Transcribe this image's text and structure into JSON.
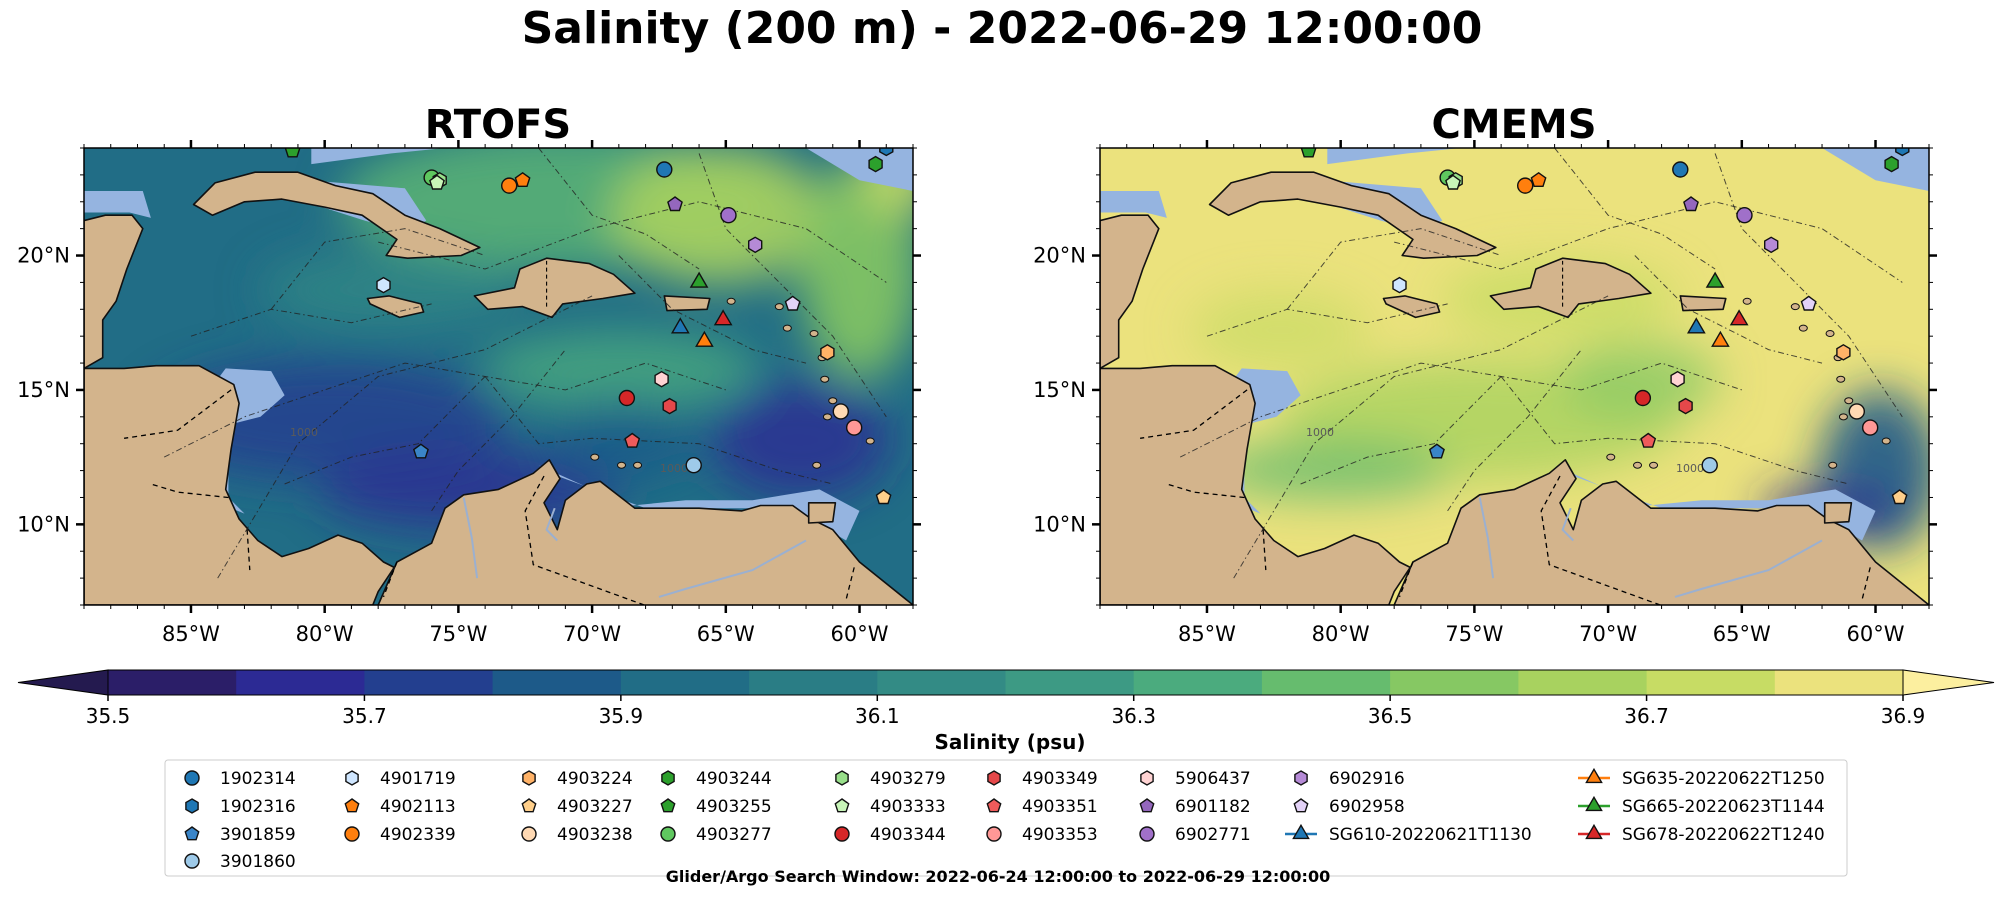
{
  "chart_data": {
    "type": "map",
    "title": "Salinity (200 m) - 2022-06-29 12:00:00",
    "panels": [
      {
        "name": "RTOFS",
        "background_level": 35.95
      },
      {
        "name": "CMEMS",
        "background_level": 36.85
      }
    ],
    "lon_range": [
      -89,
      -58
    ],
    "lat_range": [
      7,
      24
    ],
    "lon_ticks": [
      {
        "value": -85,
        "label": "85°W"
      },
      {
        "value": -80,
        "label": "80°W"
      },
      {
        "value": -75,
        "label": "75°W"
      },
      {
        "value": -70,
        "label": "70°W"
      },
      {
        "value": -65,
        "label": "65°W"
      },
      {
        "value": -60,
        "label": "60°W"
      }
    ],
    "lat_ticks": [
      {
        "value": 10,
        "label": "10°N"
      },
      {
        "value": 15,
        "label": "15°N"
      },
      {
        "value": 20,
        "label": "20°N"
      }
    ],
    "contour_labels": [
      "1000",
      "1000",
      "1000",
      "1000"
    ],
    "colorbar": {
      "label": "Salinity (psu)",
      "min": 35.5,
      "max": 36.9,
      "step": 0.1,
      "ticks": [
        "35.5",
        "35.7",
        "35.9",
        "36.1",
        "36.3",
        "36.5",
        "36.7",
        "36.9"
      ],
      "colors": [
        "#2b1e68",
        "#2c2a94",
        "#233f8f",
        "#1d5a89",
        "#216d86",
        "#2a7d85",
        "#338b85",
        "#3d9a84",
        "#4bab7e",
        "#66bc6e",
        "#86c863",
        "#a8d25f",
        "#c7dc64",
        "#ebe27d"
      ],
      "extend_low": "#241a4f",
      "extend_high": "#fcef9f"
    },
    "colors": {
      "land": "#d3b48c",
      "shallow": "#95b4e0",
      "deep_blue": "#2c1f6e"
    },
    "floats": [
      {
        "id": "1902314",
        "type": "argo",
        "marker": "circle",
        "color": "#1f77b4",
        "lon": -67.3,
        "lat": 23.2
      },
      {
        "id": "1902316",
        "type": "argo",
        "marker": "hexagon",
        "color": "#1f77b4",
        "lon": -59.0,
        "lat": 24.0
      },
      {
        "id": "3901859",
        "type": "argo",
        "marker": "pentagon",
        "color": "#3a85c8",
        "lon": -76.4,
        "lat": 12.7
      },
      {
        "id": "3901860",
        "type": "argo",
        "marker": "circle",
        "color": "#9ecae9",
        "lon": -66.2,
        "lat": 12.2
      },
      {
        "id": "4901719",
        "type": "argo",
        "marker": "hexagon",
        "color": "#cfe6ff",
        "lon": -77.8,
        "lat": 18.9
      },
      {
        "id": "4902113",
        "type": "argo",
        "marker": "pentagon",
        "color": "#ff7f0e",
        "lon": -72.6,
        "lat": 22.8
      },
      {
        "id": "4902339",
        "type": "argo",
        "marker": "circle",
        "color": "#ff7f0e",
        "lon": -73.1,
        "lat": 22.6
      },
      {
        "id": "4903224",
        "type": "argo",
        "marker": "hexagon",
        "color": "#ffb267",
        "lon": -61.2,
        "lat": 16.4
      },
      {
        "id": "4903227",
        "type": "argo",
        "marker": "pentagon",
        "color": "#ffcf8a",
        "lon": -59.1,
        "lat": 11.0
      },
      {
        "id": "4903238",
        "type": "argo",
        "marker": "circle",
        "color": "#ffd9b3",
        "lon": -60.7,
        "lat": 14.2
      },
      {
        "id": "4903244",
        "type": "argo",
        "marker": "hexagon",
        "color": "#2ca02c",
        "lon": -59.4,
        "lat": 23.4
      },
      {
        "id": "4903255",
        "type": "argo",
        "marker": "pentagon",
        "color": "#2ca02c",
        "lon": -81.2,
        "lat": 23.9
      },
      {
        "id": "4903277",
        "type": "argo",
        "marker": "circle",
        "color": "#5fc75f",
        "lon": -76.0,
        "lat": 22.9
      },
      {
        "id": "4903279",
        "type": "argo",
        "marker": "hexagon",
        "color": "#98df8a",
        "lon": -75.7,
        "lat": 22.8
      },
      {
        "id": "4903333",
        "type": "argo",
        "marker": "pentagon",
        "color": "#c8f5b8",
        "lon": -75.8,
        "lat": 22.7
      },
      {
        "id": "4903344",
        "type": "argo",
        "marker": "circle",
        "color": "#d62728",
        "lon": -68.7,
        "lat": 14.7
      },
      {
        "id": "4903349",
        "type": "argo",
        "marker": "hexagon",
        "color": "#e5484a",
        "lon": -67.1,
        "lat": 14.4
      },
      {
        "id": "4903351",
        "type": "argo",
        "marker": "pentagon",
        "color": "#ef5b5b",
        "lon": -68.5,
        "lat": 13.1
      },
      {
        "id": "4903353",
        "type": "argo",
        "marker": "circle",
        "color": "#ff9896",
        "lon": -60.2,
        "lat": 13.6
      },
      {
        "id": "5906437",
        "type": "argo",
        "marker": "hexagon",
        "color": "#ffd3d3",
        "lon": -67.4,
        "lat": 15.4
      },
      {
        "id": "6901182",
        "type": "argo",
        "marker": "pentagon",
        "color": "#9467bd",
        "lon": -66.9,
        "lat": 21.9
      },
      {
        "id": "6902771",
        "type": "argo",
        "marker": "circle",
        "color": "#a070c9",
        "lon": -64.9,
        "lat": 21.5
      },
      {
        "id": "6902916",
        "type": "argo",
        "marker": "hexagon",
        "color": "#b58ad6",
        "lon": -63.9,
        "lat": 20.4
      },
      {
        "id": "6902958",
        "type": "argo",
        "marker": "pentagon",
        "color": "#e3d2f7",
        "lon": -62.5,
        "lat": 18.2
      },
      {
        "id": "SG610-20220621T1130",
        "type": "glider",
        "marker": "triangle",
        "color": "#1f77b4",
        "lon": -66.7,
        "lat": 17.3
      },
      {
        "id": "SG635-20220622T1250",
        "type": "glider",
        "marker": "triangle",
        "color": "#ff7f0e",
        "lon": -65.8,
        "lat": 16.8
      },
      {
        "id": "SG665-20220623T1144",
        "type": "glider",
        "marker": "triangle",
        "color": "#2ca02c",
        "lon": -66.0,
        "lat": 19.0
      },
      {
        "id": "SG678-20220622T1240",
        "type": "glider",
        "marker": "triangle",
        "color": "#d62728",
        "lon": -65.1,
        "lat": 17.6
      }
    ],
    "footer": "Glider/Argo Search Window: 2022-06-24 12:00:00 to 2022-06-29 12:00:00"
  }
}
